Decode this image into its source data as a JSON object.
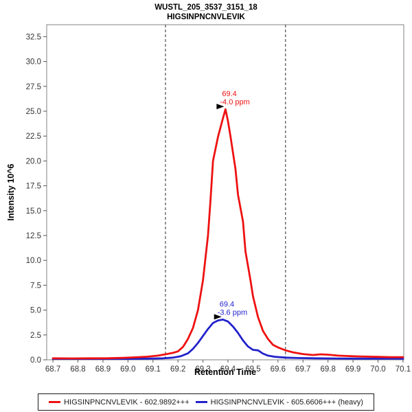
{
  "title": {
    "line1": "WUSTL_205_3537_3151_18",
    "line2": "HIGSINPNCNVLEVIK"
  },
  "axes": {
    "x_label": "Retention Time",
    "y_label": "Intensity 10^6"
  },
  "legend": {
    "items": [
      {
        "label": "HIGSINPNCNVLEVIK - 602.9892+++",
        "color": "#ee1111"
      },
      {
        "label": "HIGSINPNCNVLEVIK - 605.6606+++ (heavy)",
        "color": "#2222cc"
      }
    ]
  },
  "colors": {
    "light_series": "#ee1111",
    "heavy_series": "#2222cc",
    "plot_border": "#808080",
    "tick": "#555555",
    "tick_label": "#333333",
    "boundary_line": "#4d4d4d",
    "marker": "#000000",
    "background": "#ffffff"
  },
  "chart_data": {
    "type": "line",
    "title": "WUSTL_205_3537_3151_18 / HIGSINPNCNVLEVIK",
    "xlabel": "Retention Time",
    "ylabel": "Intensity 10^6",
    "xlim": [
      68.675,
      70.103
    ],
    "ylim": [
      0,
      33.7
    ],
    "grid": false,
    "legend_position": "bottom",
    "x_ticks": [
      "68.7",
      "68.8",
      "68.9",
      "69.0",
      "69.1",
      "69.2",
      "69.3",
      "69.4",
      "69.5",
      "69.6",
      "69.7",
      "69.8",
      "69.9",
      "70.0",
      "70.1"
    ],
    "y_ticks": [
      "0.0",
      "2.5",
      "5.0",
      "7.5",
      "10.0",
      "12.5",
      "15.0",
      "17.5",
      "20.0",
      "22.5",
      "25.0",
      "27.5",
      "30.0",
      "32.5"
    ],
    "integration_boundaries": [
      69.15,
      69.63
    ],
    "series": [
      {
        "name": "HIGSINPNCNVLEVIK - 605.6606+++ (heavy)",
        "color": "#2222cc",
        "peak_annotation": {
          "rt_label": "69.4",
          "ppm_label": "-3.6 ppm",
          "apex_rt": 69.38,
          "apex_intensity": 4.05
        },
        "points": [
          [
            68.7,
            0.1
          ],
          [
            68.85,
            0.1
          ],
          [
            69.0,
            0.1
          ],
          [
            69.08,
            0.12
          ],
          [
            69.14,
            0.15
          ],
          [
            69.18,
            0.22
          ],
          [
            69.21,
            0.35
          ],
          [
            69.24,
            0.65
          ],
          [
            69.26,
            1.1
          ],
          [
            69.28,
            1.7
          ],
          [
            69.3,
            2.4
          ],
          [
            69.32,
            3.1
          ],
          [
            69.34,
            3.7
          ],
          [
            69.36,
            3.95
          ],
          [
            69.38,
            4.05
          ],
          [
            69.4,
            3.85
          ],
          [
            69.42,
            3.35
          ],
          [
            69.44,
            2.7
          ],
          [
            69.46,
            1.95
          ],
          [
            69.48,
            1.35
          ],
          [
            69.5,
            1.0
          ],
          [
            69.52,
            0.95
          ],
          [
            69.54,
            0.62
          ],
          [
            69.56,
            0.42
          ],
          [
            69.59,
            0.3
          ],
          [
            69.63,
            0.22
          ],
          [
            69.68,
            0.18
          ],
          [
            69.75,
            0.15
          ],
          [
            69.85,
            0.13
          ],
          [
            69.95,
            0.12
          ],
          [
            70.1,
            0.12
          ]
        ]
      },
      {
        "name": "HIGSINPNCNVLEVIK - 602.9892+++",
        "color": "#ee1111",
        "peak_annotation": {
          "rt_label": "69.4",
          "ppm_label": "-4.0 ppm",
          "apex_rt": 69.39,
          "apex_intensity": 25.2
        },
        "points": [
          [
            68.7,
            0.15
          ],
          [
            68.78,
            0.14
          ],
          [
            68.85,
            0.15
          ],
          [
            68.92,
            0.16
          ],
          [
            68.98,
            0.2
          ],
          [
            69.03,
            0.25
          ],
          [
            69.08,
            0.32
          ],
          [
            69.12,
            0.42
          ],
          [
            69.15,
            0.55
          ],
          [
            69.18,
            0.7
          ],
          [
            69.2,
            0.85
          ],
          [
            69.22,
            1.3
          ],
          [
            69.24,
            2.1
          ],
          [
            69.26,
            3.2
          ],
          [
            69.28,
            5.0
          ],
          [
            69.3,
            8.0
          ],
          [
            69.32,
            12.5
          ],
          [
            69.33,
            16.0
          ],
          [
            69.34,
            20.0
          ],
          [
            69.36,
            22.4
          ],
          [
            69.38,
            24.3
          ],
          [
            69.39,
            25.2
          ],
          [
            69.4,
            24.0
          ],
          [
            69.41,
            22.5
          ],
          [
            69.43,
            19.2
          ],
          [
            69.44,
            16.6
          ],
          [
            69.46,
            13.9
          ],
          [
            69.47,
            10.9
          ],
          [
            69.49,
            8.0
          ],
          [
            69.5,
            6.4
          ],
          [
            69.52,
            4.3
          ],
          [
            69.54,
            2.9
          ],
          [
            69.56,
            2.1
          ],
          [
            69.58,
            1.5
          ],
          [
            69.6,
            1.25
          ],
          [
            69.63,
            0.95
          ],
          [
            69.66,
            0.75
          ],
          [
            69.7,
            0.58
          ],
          [
            69.74,
            0.48
          ],
          [
            69.77,
            0.55
          ],
          [
            69.8,
            0.52
          ],
          [
            69.84,
            0.42
          ],
          [
            69.88,
            0.38
          ],
          [
            69.93,
            0.34
          ],
          [
            70.0,
            0.3
          ],
          [
            70.05,
            0.27
          ],
          [
            70.1,
            0.27
          ]
        ]
      }
    ]
  }
}
